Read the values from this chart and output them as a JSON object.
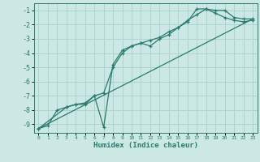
{
  "xlabel": "Humidex (Indice chaleur)",
  "bg_color": "#cce8e4",
  "grid_color": "#acd4d0",
  "line_color": "#2a7a6e",
  "xlim": [
    -0.5,
    23.5
  ],
  "ylim": [
    -9.6,
    -0.5
  ],
  "xticks": [
    0,
    1,
    2,
    3,
    4,
    5,
    6,
    7,
    8,
    9,
    10,
    11,
    12,
    13,
    14,
    15,
    16,
    17,
    18,
    19,
    20,
    21,
    22,
    23
  ],
  "yticks": [
    -9,
    -8,
    -7,
    -6,
    -5,
    -4,
    -3,
    -2,
    -1
  ],
  "curve1_x": [
    0,
    1,
    2,
    3,
    4,
    5,
    6,
    7,
    8,
    9,
    10,
    11,
    12,
    13,
    14,
    15,
    16,
    17,
    18,
    19,
    20,
    21,
    22,
    23
  ],
  "curve1_y": [
    -9.3,
    -9.1,
    -8.0,
    -7.8,
    -7.6,
    -7.6,
    -7.0,
    -9.2,
    -4.8,
    -3.8,
    -3.5,
    -3.3,
    -3.5,
    -3.0,
    -2.7,
    -2.2,
    -1.8,
    -0.9,
    -0.9,
    -1.0,
    -1.0,
    -1.5,
    -1.6,
    -1.6
  ],
  "curve2_x": [
    0,
    3,
    4,
    5,
    6,
    7,
    8,
    9,
    10,
    11,
    12,
    13,
    14,
    15,
    16,
    17,
    18,
    19,
    20,
    21,
    22,
    23
  ],
  "curve2_y": [
    -9.3,
    -7.8,
    -7.6,
    -7.5,
    -7.0,
    -6.8,
    -5.0,
    -4.0,
    -3.5,
    -3.3,
    -3.1,
    -2.9,
    -2.5,
    -2.2,
    -1.7,
    -1.3,
    -0.9,
    -1.2,
    -1.5,
    -1.7,
    -1.8,
    -1.7
  ],
  "line_x": [
    0,
    23
  ],
  "line_y": [
    -9.3,
    -1.6
  ]
}
